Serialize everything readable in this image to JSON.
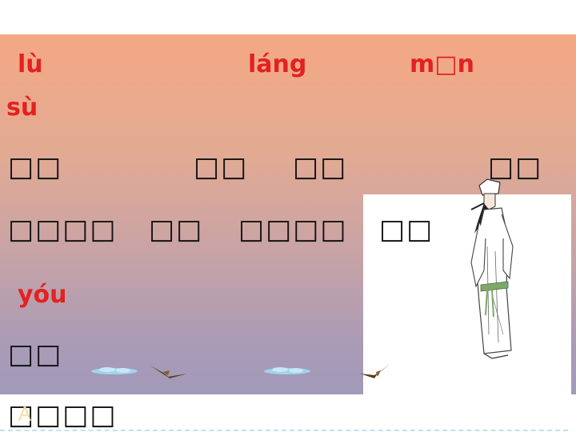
{
  "pinyin": {
    "lu": "lù",
    "lang": "láng",
    "men": "m□n",
    "su": "sù",
    "you": "yóu"
  },
  "hanzi_rows": {
    "row1": [
      "□□",
      "□□",
      "□□",
      "□□"
    ],
    "row2": [
      "□□□□",
      "□□",
      "□□□□",
      "□□"
    ],
    "row3": [
      "□□"
    ],
    "row4": [
      "□□□□"
    ]
  },
  "icons": {
    "poet": "poet-illustration-icon",
    "bird": "bird-icon",
    "cloud": "cloud-icon"
  },
  "colors": {
    "pinyin": "#e32121",
    "text": "#111111",
    "gradient_top": "#f4a884",
    "gradient_bottom": "#9c99bc"
  }
}
